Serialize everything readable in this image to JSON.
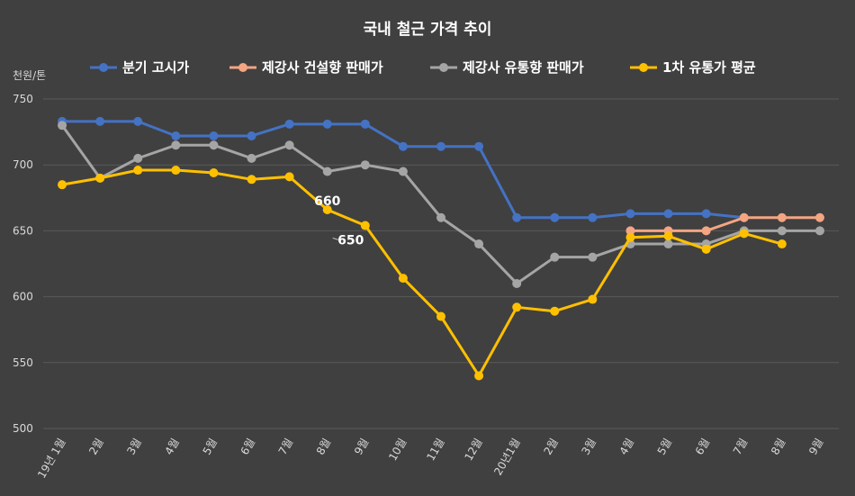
{
  "chart_data": {
    "type": "line",
    "title": "국내 철근 가격 추이",
    "ylabel": "천원/톤",
    "xlabel": "",
    "ylim": [
      500,
      750
    ],
    "yticks": [
      500,
      550,
      600,
      650,
      700,
      750
    ],
    "grid": true,
    "legend_position": "top",
    "categories": [
      "19년 1월",
      "2월",
      "3월",
      "4월",
      "5월",
      "6월",
      "7월",
      "8월",
      "9월",
      "10월",
      "11월",
      "12월",
      "20년1월",
      "2월",
      "3월",
      "4월",
      "5월",
      "6월",
      "7월",
      "8월",
      "9월"
    ],
    "series": [
      {
        "name": "분기 고시가",
        "color": "#4472C4",
        "values": [
          733,
          733,
          733,
          722,
          722,
          722,
          731,
          731,
          731,
          714,
          714,
          714,
          660,
          660,
          660,
          663,
          663,
          663,
          660,
          null,
          null
        ]
      },
      {
        "name": "제강사 건설향 판매가",
        "color": "#F4A582",
        "values": [
          null,
          null,
          null,
          null,
          null,
          null,
          null,
          null,
          null,
          null,
          null,
          null,
          null,
          null,
          null,
          650,
          650,
          650,
          660,
          660,
          660
        ]
      },
      {
        "name": "제강사 유통향 판매가",
        "color": "#A5A5A5",
        "values": [
          730,
          690,
          705,
          715,
          715,
          705,
          715,
          695,
          700,
          695,
          660,
          640,
          610,
          630,
          630,
          640,
          640,
          640,
          650,
          650,
          650
        ]
      },
      {
        "name": "1차 유통가 평균",
        "color": "#FFC000",
        "values": [
          685,
          690,
          696,
          696,
          694,
          689,
          691,
          666,
          654,
          614,
          585,
          540,
          592,
          589,
          598,
          645,
          646,
          636,
          648,
          640,
          null
        ]
      }
    ],
    "annotations": [
      {
        "text": "660",
        "x": "8월",
        "y": 660
      },
      {
        "text": "650",
        "x": "8월",
        "y": 650
      }
    ]
  }
}
